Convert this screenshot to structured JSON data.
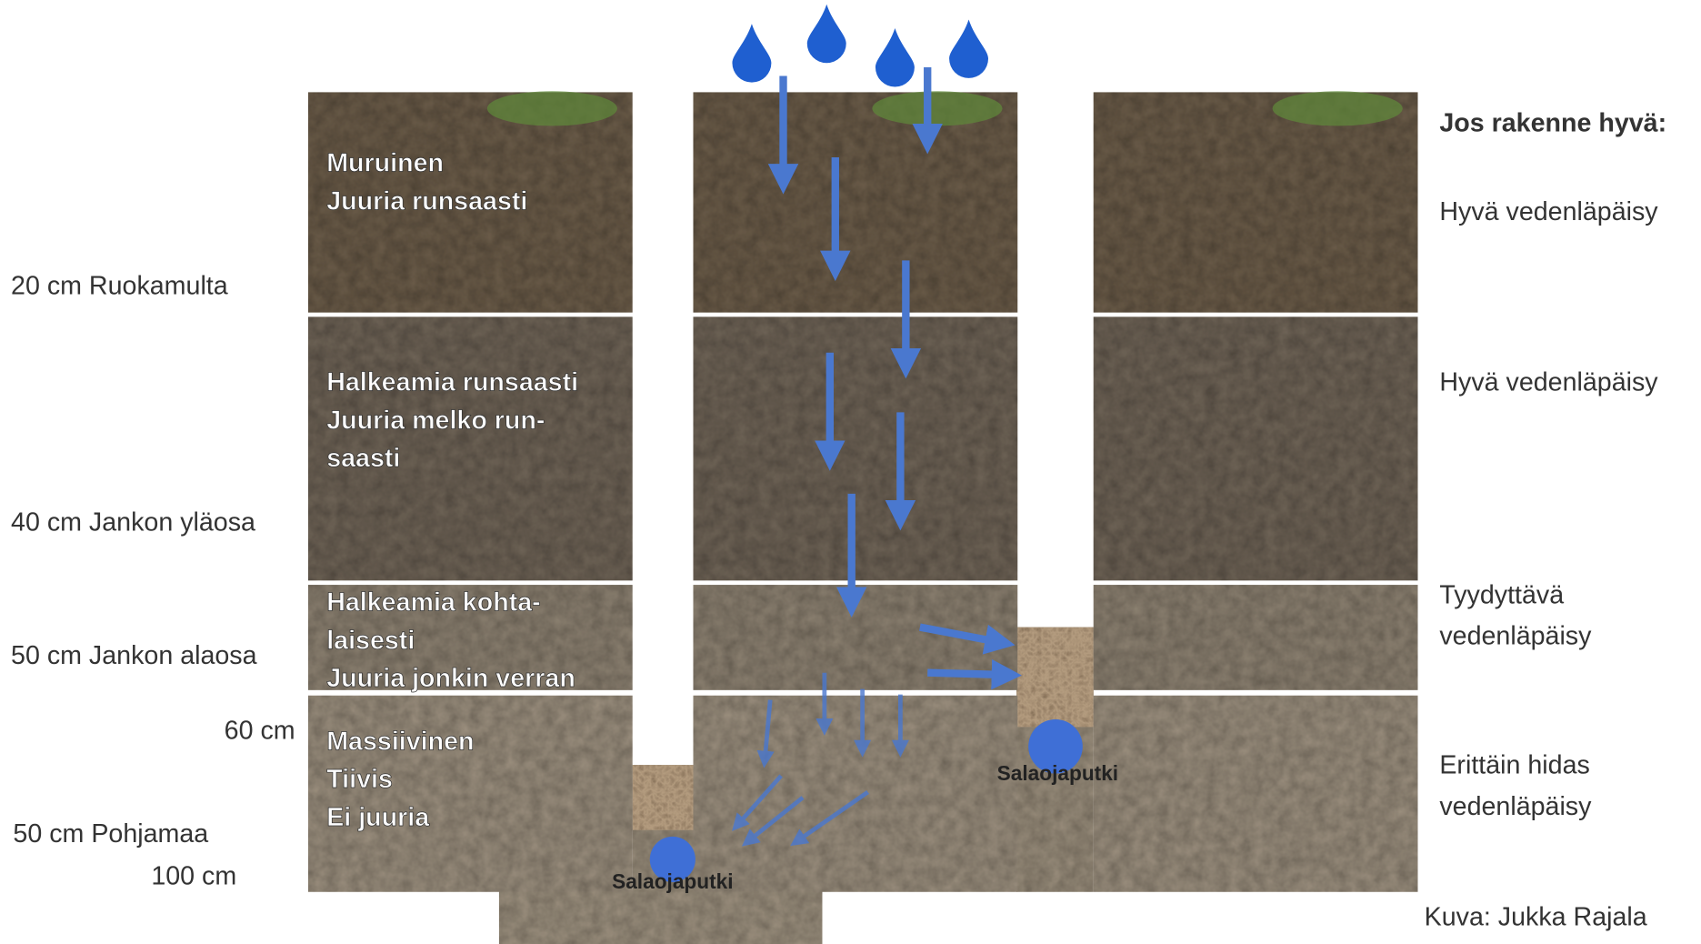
{
  "left_labels": [
    "20 cm Ruokamulta",
    "40 cm Jankon yläosa",
    "50 cm Jankon alaosa",
    "60 cm",
    "50 cm Pohjamaa",
    "100 cm"
  ],
  "layer_notes": [
    [
      "Muruinen",
      "Juuria runsaasti"
    ],
    [
      "Halkeamia runsaasti",
      "Juuria melko run-",
      "saasti"
    ],
    [
      "Halkeamia kohta-",
      "laisesti",
      "Juuria jonkin verran"
    ],
    [
      "Massiivinen",
      "Tiivis",
      "Ei juuria"
    ]
  ],
  "pipe_labels": [
    "Salaojaputki",
    "Salaojaputki"
  ],
  "right_panel": {
    "heading": "Jos rakenne hyvä:",
    "items": [
      [
        "Hyvä vedenläpäisy"
      ],
      [
        "Hyvä vedenläpäisy"
      ],
      [
        "Tyydyttävä",
        "vedenläpäisy"
      ],
      [
        "Erittäin hidas",
        "vedenläpäisy"
      ]
    ]
  },
  "credit": "Kuva: Jukka Rajala"
}
